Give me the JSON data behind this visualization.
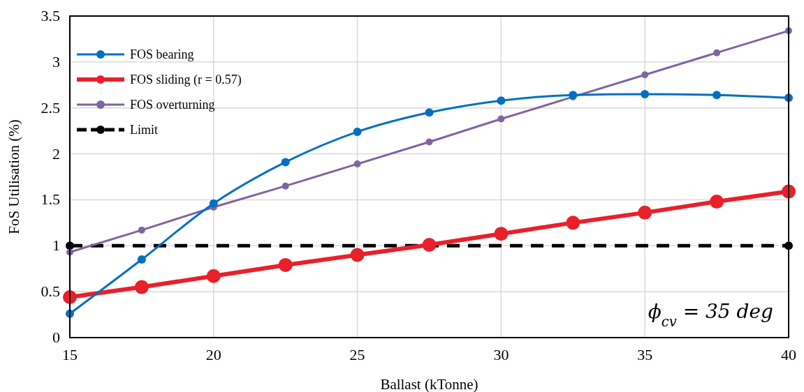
{
  "chart_data": {
    "type": "line",
    "xlabel": "Ballast (kTonne)",
    "ylabel": "FoS Utilisation (%)",
    "x": [
      15,
      17.5,
      20,
      22.5,
      25,
      27.5,
      30,
      32.5,
      35,
      37.5,
      40
    ],
    "series": [
      {
        "name": "FOS bearing",
        "color": "#0070c0",
        "values": [
          0.26,
          0.85,
          1.46,
          1.91,
          2.24,
          2.45,
          2.58,
          2.64,
          2.65,
          2.64,
          2.61
        ]
      },
      {
        "name": "FOS sliding (r = 0.57)",
        "color": "#e8202a",
        "values": [
          0.44,
          0.55,
          0.67,
          0.79,
          0.9,
          1.01,
          1.13,
          1.25,
          1.36,
          1.48,
          1.59
        ]
      },
      {
        "name": "FOS overturning",
        "color": "#8064a2",
        "values": [
          0.93,
          1.17,
          1.42,
          1.65,
          1.89,
          2.13,
          2.38,
          2.62,
          2.86,
          3.1,
          3.34
        ]
      },
      {
        "name": "Limit",
        "color": "#000000",
        "x": [
          15,
          40
        ],
        "values": [
          1,
          1
        ],
        "line_style": "dashed"
      }
    ],
    "xlim": [
      15,
      40
    ],
    "xticks": [
      15,
      20,
      25,
      30,
      35,
      40
    ],
    "ylim": [
      0,
      3.5
    ],
    "yticks": [
      0,
      0.5,
      1,
      1.5,
      2,
      2.5,
      3,
      3.5
    ],
    "grid": true,
    "legend": "top left",
    "marker": "circle",
    "line_style": "solid",
    "annotations": [
      "ϕ$_{cv}$ = 35 deg"
    ]
  }
}
